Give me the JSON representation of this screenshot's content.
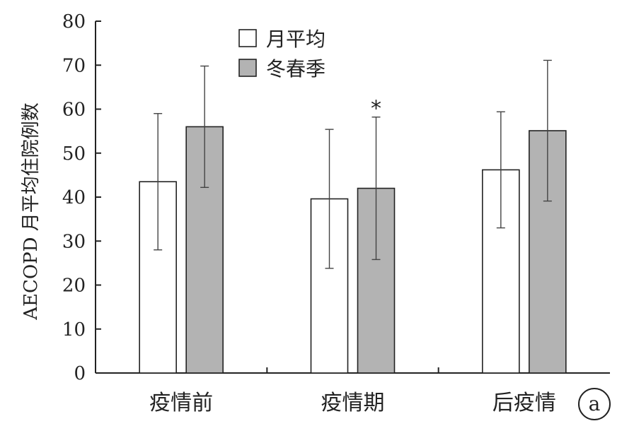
{
  "chart_data": {
    "type": "bar",
    "categories": [
      "疫情前",
      "疫情期",
      "后疫情"
    ],
    "series": [
      {
        "name": "月平均",
        "values": [
          43.5,
          39.6,
          46.2
        ],
        "errors": [
          15.5,
          15.8,
          13.2
        ],
        "color": "#ffffff"
      },
      {
        "name": "冬春季",
        "values": [
          56.0,
          42.0,
          55.1
        ],
        "errors": [
          13.8,
          16.2,
          16.0
        ],
        "color": "#b3b3b3"
      }
    ],
    "title": "",
    "xlabel": "",
    "ylabel": "AECOPD 月平均住院例数",
    "ylim": [
      0,
      80
    ],
    "yticks": [
      0,
      10,
      20,
      30,
      40,
      50,
      60,
      70,
      80
    ],
    "grid": false,
    "legend": "top-center",
    "annotations": [
      {
        "text": "*",
        "category": "疫情期",
        "series": "冬春季"
      }
    ],
    "panel_label": "a"
  }
}
